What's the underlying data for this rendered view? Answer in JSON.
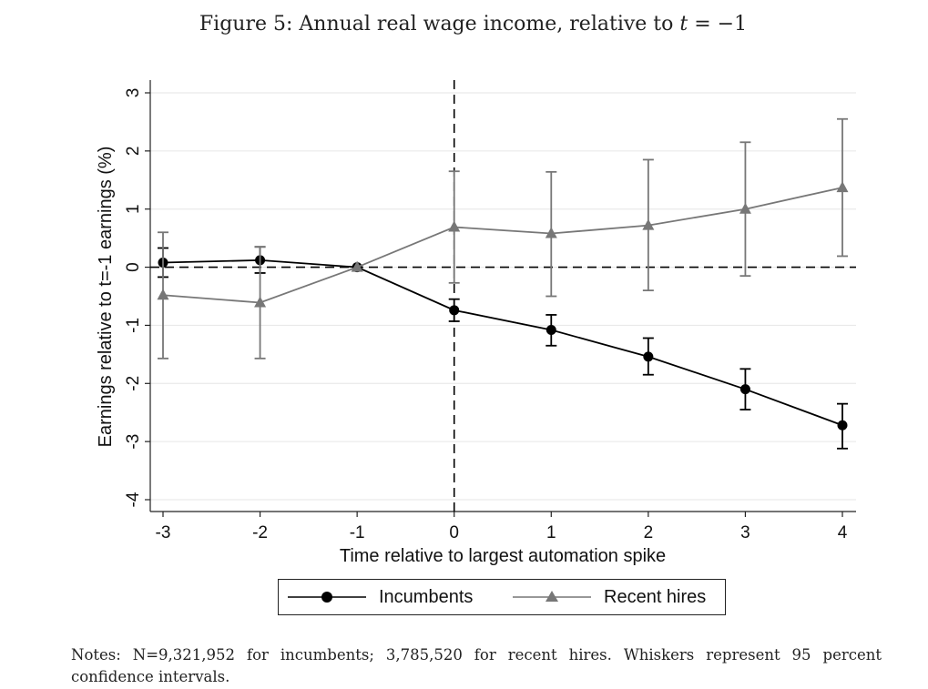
{
  "figure": {
    "title_prefix": "Figure 5:  Annual real wage income, relative to ",
    "title_var": "t",
    "title_suffix": " = −1",
    "notes": "Notes: N=9,321,952 for incumbents; 3,785,520 for recent hires. Whiskers represent 95 percent confidence intervals."
  },
  "chart_data": {
    "type": "line",
    "title": "Annual real wage income, relative to t = −1",
    "xlabel": "Time relative to largest automation spike",
    "ylabel": "Earnings relative to t=-1 earnings (%)",
    "x": [
      -3,
      -2,
      -1,
      0,
      1,
      2,
      3,
      4
    ],
    "x_tick_labels": [
      "-3",
      "-2",
      "-1",
      "0",
      "1",
      "2",
      "3",
      "4"
    ],
    "y_ticks": [
      3,
      2,
      1,
      0,
      -1,
      -2,
      -3,
      -4
    ],
    "ylim": [
      -4.2,
      3.15
    ],
    "reference_lines": {
      "vertical_x": 0,
      "horizontal_y": 0,
      "style": "dashed"
    },
    "grid": "horizontal",
    "legend_position": "bottom",
    "series": [
      {
        "name": "Incumbents",
        "color": "#000000",
        "marker": "circle",
        "values": [
          0.08,
          0.12,
          0.0,
          -0.74,
          -1.08,
          -1.54,
          -2.1,
          -2.72
        ],
        "ci_low": [
          -0.17,
          -0.1,
          0.0,
          -0.93,
          -1.35,
          -1.85,
          -2.45,
          -3.12
        ],
        "ci_high": [
          0.33,
          0.35,
          0.0,
          -0.55,
          -0.82,
          -1.22,
          -1.75,
          -2.35
        ]
      },
      {
        "name": "Recent hires",
        "color": "#777777",
        "marker": "triangle",
        "values": [
          -0.48,
          -0.61,
          0.0,
          0.69,
          0.58,
          0.72,
          1.0,
          1.37
        ],
        "ci_low": [
          -1.57,
          -1.57,
          0.0,
          -0.27,
          -0.5,
          -0.4,
          -0.15,
          0.19
        ],
        "ci_high": [
          0.6,
          0.35,
          0.0,
          1.65,
          1.64,
          1.85,
          2.15,
          2.55
        ]
      }
    ]
  }
}
